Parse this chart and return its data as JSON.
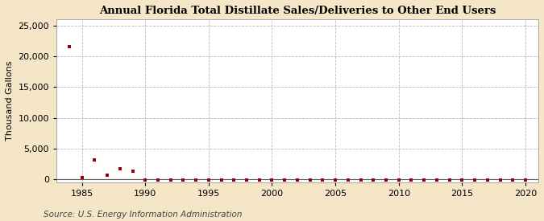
{
  "title": "Annual Florida Total Distillate Sales/Deliveries to Other End Users",
  "ylabel": "Thousand Gallons",
  "source": "Source: U.S. Energy Information Administration",
  "background_color": "#f5e6c8",
  "plot_background_color": "#ffffff",
  "marker_color": "#990000",
  "marker_size": 3.5,
  "xlim": [
    1983,
    2021
  ],
  "ylim": [
    -500,
    26000
  ],
  "yticks": [
    0,
    5000,
    10000,
    15000,
    20000,
    25000
  ],
  "xticks": [
    1985,
    1990,
    1995,
    2000,
    2005,
    2010,
    2015,
    2020
  ],
  "data": [
    [
      1984,
      21500
    ],
    [
      1985,
      300
    ],
    [
      1986,
      3100
    ],
    [
      1987,
      700
    ],
    [
      1988,
      1700
    ],
    [
      1989,
      1300
    ],
    [
      1990,
      -150
    ],
    [
      1991,
      -150
    ],
    [
      1992,
      -150
    ],
    [
      1993,
      -150
    ],
    [
      1994,
      -150
    ],
    [
      1995,
      -150
    ],
    [
      1996,
      -150
    ],
    [
      1997,
      -150
    ],
    [
      1998,
      -150
    ],
    [
      1999,
      -150
    ],
    [
      2000,
      -150
    ],
    [
      2001,
      -150
    ],
    [
      2002,
      -150
    ],
    [
      2003,
      -150
    ],
    [
      2004,
      -150
    ],
    [
      2005,
      -150
    ],
    [
      2006,
      -150
    ],
    [
      2007,
      -150
    ],
    [
      2008,
      -150
    ],
    [
      2009,
      -150
    ],
    [
      2010,
      -150
    ],
    [
      2011,
      -150
    ],
    [
      2012,
      -150
    ],
    [
      2013,
      -150
    ],
    [
      2014,
      -150
    ],
    [
      2015,
      -150
    ],
    [
      2016,
      -150
    ],
    [
      2017,
      -150
    ],
    [
      2018,
      -150
    ],
    [
      2019,
      -150
    ],
    [
      2020,
      -150
    ]
  ]
}
